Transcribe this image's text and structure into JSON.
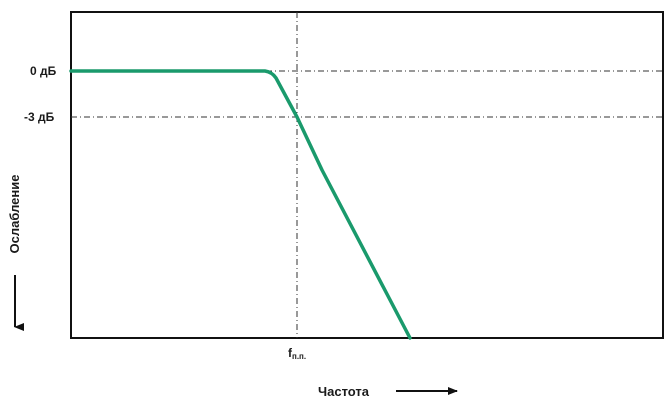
{
  "diagram": {
    "level_labels": {
      "zero_db": "0 дБ",
      "minus3_db": "-3 дБ"
    },
    "x_axis": {
      "label": "Частота",
      "cutoff_main": "f",
      "cutoff_sub": "п.п."
    },
    "y_axis": {
      "label": "Ослабление"
    },
    "colors": {
      "curve": "#1a9a6c",
      "frame": "#111111",
      "guide": "#333333",
      "background": "#ffffff"
    }
  }
}
